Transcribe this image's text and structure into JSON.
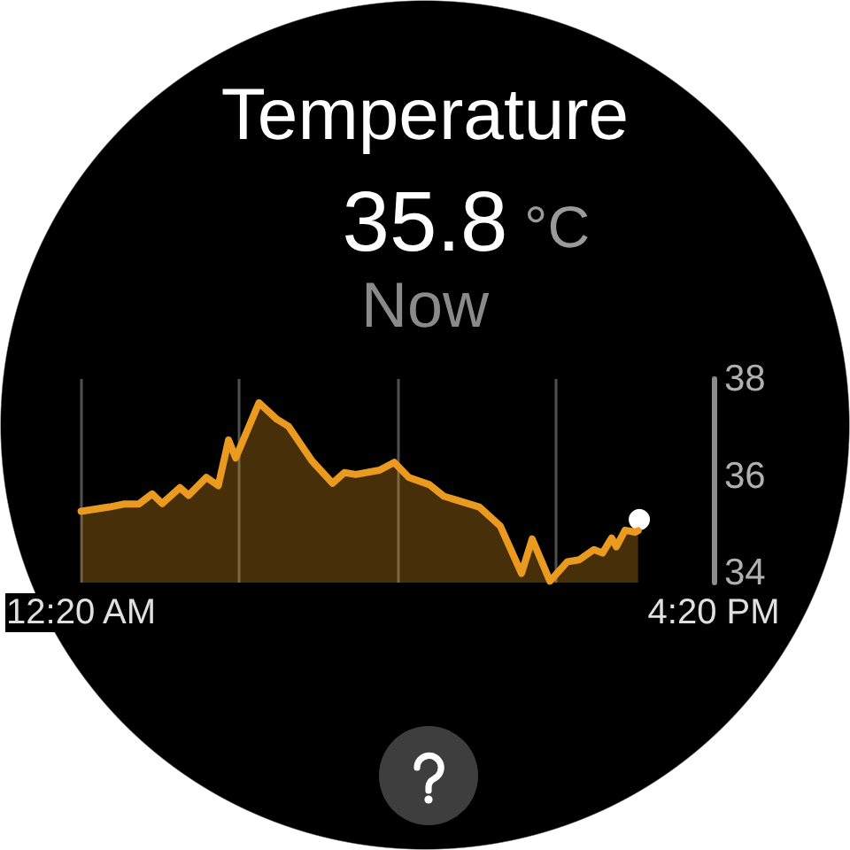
{
  "chart_data": {
    "type": "area",
    "title": "Temperature",
    "annotations": [
      "35.8",
      "°C",
      "Now"
    ],
    "series": [
      {
        "color": "#e99a1f",
        "x": [
          0.33,
          1.05,
          1.42,
          1.79,
          2.13,
          2.38,
          2.83,
          3.05,
          3.5,
          3.8,
          4.06,
          4.24,
          4.83,
          5.28,
          5.58,
          6.17,
          6.69,
          6.99,
          7.28,
          7.88,
          8.25,
          8.62,
          9.14,
          9.51,
          10.4,
          10.93,
          11.47,
          11.74,
          12.19,
          12.63,
          12.93,
          13.3,
          13.52,
          13.75,
          13.87,
          14.09,
          14.34,
          14.42
        ],
        "values": [
          35.27,
          35.36,
          35.42,
          35.42,
          35.63,
          35.43,
          35.76,
          35.6,
          35.97,
          35.8,
          36.74,
          36.37,
          37.51,
          37.17,
          37.02,
          36.31,
          35.85,
          36.07,
          36.03,
          36.12,
          36.28,
          35.97,
          35.82,
          35.58,
          35.36,
          34.97,
          33.99,
          34.7,
          33.83,
          34.23,
          34.27,
          34.48,
          34.41,
          34.72,
          34.54,
          34.88,
          34.84,
          34.87
        ]
      },
      {
        "type": "scatter",
        "color": "#ffffff",
        "x": [
          14.45
        ],
        "values": [
          35.1
        ]
      }
    ],
    "xlim": [
      0.33,
      16.33
    ],
    "xticks": [
      {
        "value": 0.33,
        "label": "12:20 AM"
      },
      {
        "value": 4.33,
        "label": null
      },
      {
        "value": 8.33,
        "label": null
      },
      {
        "value": 12.33,
        "label": null
      },
      {
        "value": 16.33,
        "label": "4:20 PM"
      }
    ],
    "ylim": [
      33.8,
      38
    ],
    "yticks": [
      34,
      36,
      38
    ],
    "grid": "x"
  }
}
